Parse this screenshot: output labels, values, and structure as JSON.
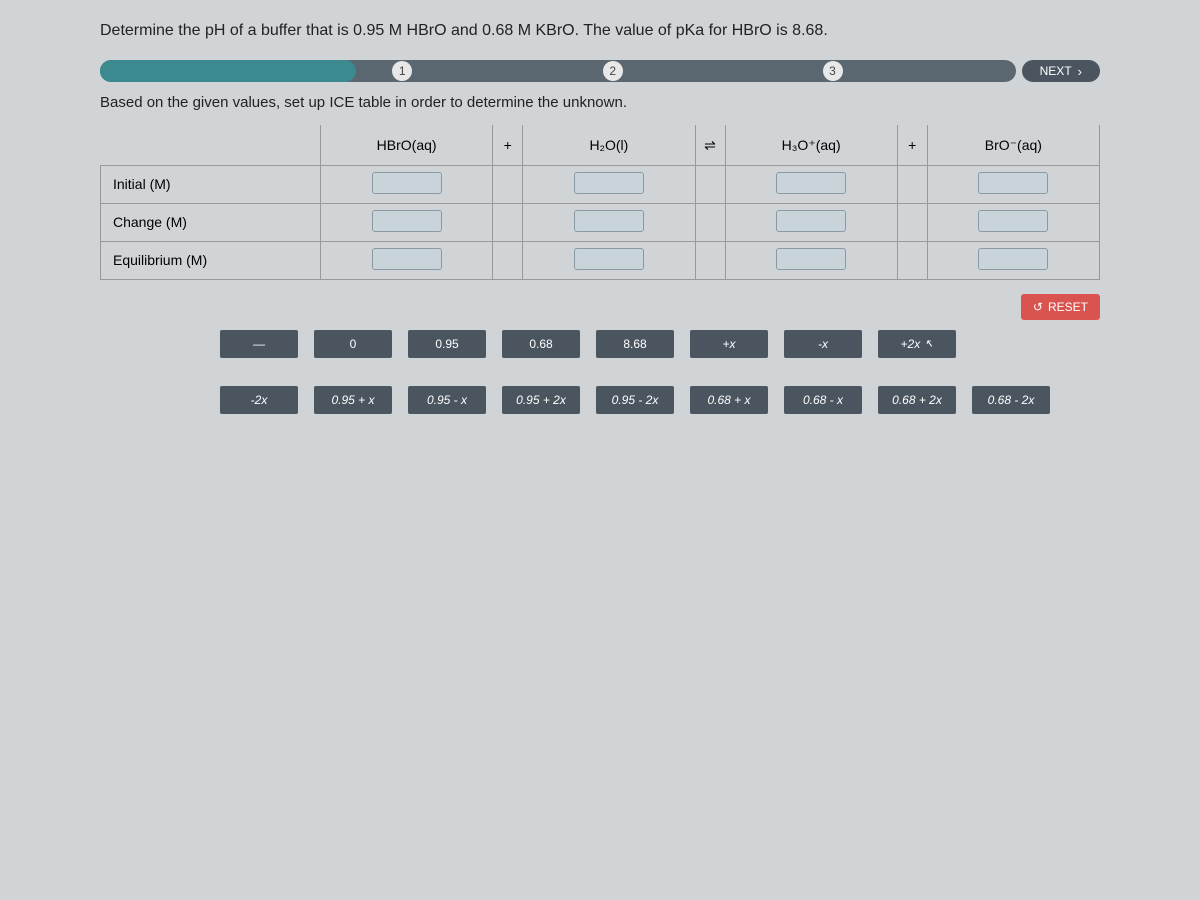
{
  "question": "Determine the pH of a buffer that is 0.95 M HBrO and 0.68 M KBrO. The value of pKa for HBrO is 8.68.",
  "progress": {
    "fill_percent": 28,
    "steps": [
      "1",
      "2",
      "3"
    ],
    "next_label": "NEXT"
  },
  "instruction": "Based on the given values, set up ICE table in order to determine the unknown.",
  "table": {
    "columns": {
      "c1": "HBrO(aq)",
      "op1": "+",
      "c2": "H₂O(l)",
      "op2": "⇌",
      "c3": "H₃O⁺(aq)",
      "op3": "+",
      "c4": "BrO⁻(aq)"
    },
    "rows": [
      "Initial (M)",
      "Change (M)",
      "Equilibrium (M)"
    ]
  },
  "reset_label": "RESET",
  "tiles": {
    "row1": [
      "—",
      "0",
      "0.95",
      "0.68",
      "8.68",
      "+x",
      "-x",
      "+2x"
    ],
    "row2": [
      "-2x",
      "0.95 + x",
      "0.95 - x",
      "0.95 + 2x",
      "0.95 - 2x",
      "0.68 + x",
      "0.68 - x",
      "0.68 + 2x"
    ],
    "row3": [
      "0.68 - 2x"
    ]
  },
  "colors": {
    "bg": "#d0d4d6",
    "bar_bg": "#5b6770",
    "bar_fill": "#3a8a8f",
    "btn": "#4a5560",
    "reset": "#d9534f",
    "slot": "#c8d4da"
  }
}
